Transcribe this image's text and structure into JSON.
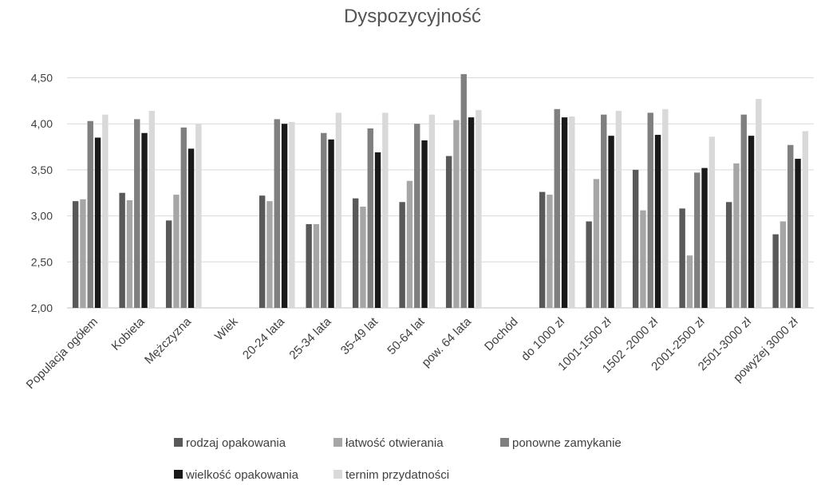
{
  "chart_data": {
    "type": "bar",
    "title": "Dyspozycyjność",
    "xlabel": "",
    "ylabel": "",
    "ylim": [
      2.0,
      4.75
    ],
    "yticks": [
      "2,00",
      "2,50",
      "3,00",
      "3,50",
      "4,00",
      "4,50"
    ],
    "ytick_values": [
      2.0,
      2.5,
      3.0,
      3.5,
      4.0,
      4.5
    ],
    "grid": true,
    "legend_position": "bottom",
    "categories": [
      "Populacja ogółem",
      "Kobieta",
      "Mężczyzna",
      "Wiek",
      "20-24 lata",
      "25-34 lata",
      "35-49 lat",
      "50-64 lat",
      "pow. 64 lata",
      "Dochód",
      "do 1000 zł",
      "1001-1500 zł",
      "1502 -2000 zł",
      "2001-2500 zł",
      "2501-3000 zł",
      "powyżej 3000 zł"
    ],
    "series": [
      {
        "name": "rodzaj opakowania",
        "color": "#595959",
        "values": [
          3.16,
          3.25,
          2.95,
          null,
          3.22,
          2.91,
          3.19,
          3.15,
          3.65,
          null,
          3.26,
          2.94,
          3.5,
          3.08,
          3.15,
          2.8
        ]
      },
      {
        "name": "łatwość otwierania",
        "color": "#a6a6a6",
        "values": [
          3.18,
          3.17,
          3.23,
          null,
          3.16,
          2.91,
          3.1,
          3.38,
          4.04,
          null,
          3.23,
          3.4,
          3.06,
          2.57,
          3.57,
          2.94
        ]
      },
      {
        "name": "ponowne zamykanie",
        "color": "#7f7f7f",
        "values": [
          4.03,
          4.05,
          3.96,
          null,
          4.05,
          3.9,
          3.95,
          4.0,
          4.54,
          null,
          4.16,
          4.1,
          4.12,
          3.47,
          4.1,
          3.77
        ]
      },
      {
        "name": "wielkość opakowania",
        "color": "#1a1a1a",
        "values": [
          3.85,
          3.9,
          3.73,
          null,
          4.0,
          3.83,
          3.69,
          3.82,
          4.07,
          null,
          4.07,
          3.87,
          3.88,
          3.52,
          3.87,
          3.62
        ]
      },
      {
        "name": "ternim przydatności",
        "color": "#d9d9d9",
        "values": [
          4.1,
          4.14,
          4.0,
          null,
          4.02,
          4.12,
          4.12,
          4.1,
          4.15,
          null,
          4.08,
          4.14,
          4.16,
          3.86,
          4.27,
          3.92
        ]
      }
    ],
    "colors": {
      "grid": "#d9d9d9",
      "axis": "#bfbfbf",
      "text": "#404040"
    }
  }
}
